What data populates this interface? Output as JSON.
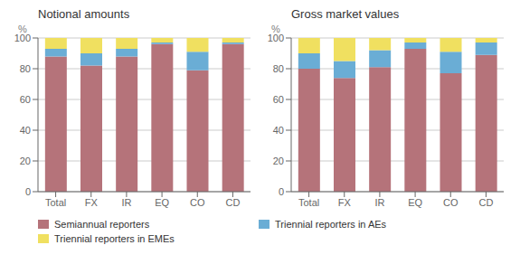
{
  "chart_data": [
    {
      "type": "bar",
      "title": "Notional amounts",
      "ylabel": "%",
      "categories": [
        "Total",
        "FX",
        "IR",
        "EQ",
        "CO",
        "CD"
      ],
      "series": [
        {
          "name": "Semiannual reporters",
          "color": "#b5737a",
          "values": [
            88,
            82,
            88,
            96,
            79,
            96
          ]
        },
        {
          "name": "Triennial reporters in AEs",
          "color": "#6aadd5",
          "values": [
            5,
            8,
            5,
            1,
            12,
            1
          ]
        },
        {
          "name": "Triennial reporters in EMEs",
          "color": "#f0e060",
          "values": [
            7,
            10,
            7,
            3,
            9,
            3
          ]
        }
      ],
      "ylim": [
        0,
        100
      ],
      "yticks": [
        0,
        20,
        40,
        60,
        80,
        100
      ],
      "stacked": true,
      "grid": true,
      "legend": "bottom"
    },
    {
      "type": "bar",
      "title": "Gross market values",
      "ylabel": "%",
      "categories": [
        "Total",
        "FX",
        "IR",
        "EQ",
        "CO",
        "CD"
      ],
      "series": [
        {
          "name": "Semiannual reporters",
          "color": "#b5737a",
          "values": [
            80,
            74,
            81,
            93,
            77,
            89
          ]
        },
        {
          "name": "Triennial reporters in AEs",
          "color": "#6aadd5",
          "values": [
            10,
            11,
            11,
            4,
            14,
            8
          ]
        },
        {
          "name": "Triennial reporters in EMEs",
          "color": "#f0e060",
          "values": [
            10,
            15,
            8,
            3,
            9,
            3
          ]
        }
      ],
      "ylim": [
        0,
        100
      ],
      "yticks": [
        0,
        20,
        40,
        60,
        80,
        100
      ],
      "stacked": true,
      "grid": true
    }
  ]
}
